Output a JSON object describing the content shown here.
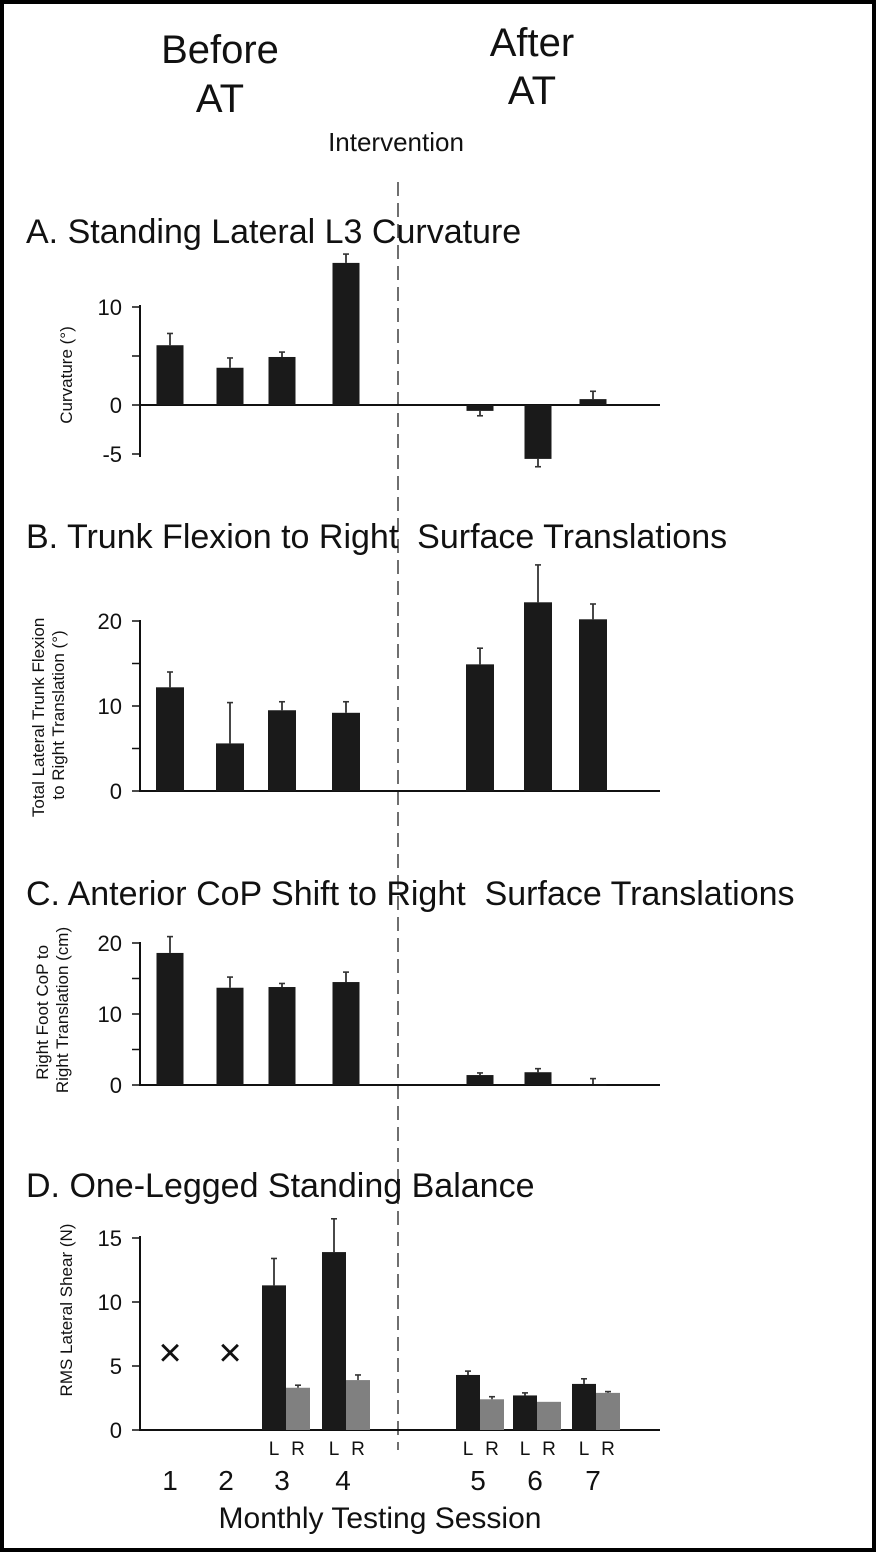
{
  "header": {
    "before_line1": "Before",
    "before_line2": "AT",
    "after_line1": "After",
    "after_line2": "AT",
    "intervention": "Intervention"
  },
  "xaxis": {
    "label": "Monthly Testing Session",
    "sessions": [
      "1",
      "2",
      "3",
      "4",
      "5",
      "6",
      "7"
    ],
    "lr_labels": [
      "L",
      "R"
    ]
  },
  "colors": {
    "bar": "#1a1a1a",
    "bar_right": "#808080",
    "axis": "#111111"
  },
  "chart_data": [
    {
      "type": "bar",
      "title": "A. Standing Lateral L3 Curvature",
      "ylabel": "Curvature (°)",
      "ylim": [
        -5,
        15
      ],
      "yticks": [
        {
          "value": 10,
          "label": "10"
        },
        {
          "value": 0,
          "label": "0"
        },
        {
          "value": -5,
          "label": "-5"
        }
      ],
      "sessions": [
        1,
        2,
        3,
        4,
        5,
        6,
        7
      ],
      "values": [
        6.1,
        3.8,
        4.9,
        14.5,
        -0.6,
        -5.5,
        0.6
      ],
      "errors": [
        1.2,
        1.0,
        0.5,
        0.9,
        0.5,
        0.8,
        0.8
      ]
    },
    {
      "type": "bar",
      "title": "B. Trunk Flexion to Right  Surface Translations",
      "ylabel": "Total Lateral Trunk Flexion\nto Right Translation (°)",
      "ylim": [
        0,
        25
      ],
      "yticks": [
        {
          "value": 20,
          "label": "20"
        },
        {
          "value": 10,
          "label": "10"
        },
        {
          "value": 0,
          "label": "0"
        }
      ],
      "sessions": [
        1,
        2,
        3,
        4,
        5,
        6,
        7
      ],
      "values": [
        12.2,
        5.6,
        9.5,
        9.2,
        14.9,
        22.2,
        20.2
      ],
      "errors": [
        1.8,
        4.8,
        1.0,
        1.3,
        1.9,
        4.4,
        1.8
      ]
    },
    {
      "type": "bar",
      "title": "C. Anterior CoP Shift to Right  Surface Translations",
      "ylabel": "Right  Foot CoP to\nRight Translation (cm)",
      "ylim": [
        0,
        20
      ],
      "yticks": [
        {
          "value": 20,
          "label": "20"
        },
        {
          "value": 10,
          "label": "10"
        },
        {
          "value": 0,
          "label": "0"
        }
      ],
      "sessions": [
        1,
        2,
        3,
        4,
        5,
        6,
        7
      ],
      "values": [
        18.6,
        13.7,
        13.8,
        14.5,
        1.4,
        1.8,
        0.1
      ],
      "errors": [
        2.3,
        1.5,
        0.5,
        1.4,
        0.3,
        0.5,
        0.8
      ]
    },
    {
      "type": "bar",
      "title": "D. One-Legged Standing Balance",
      "ylabel": "RMS Lateral Shear (N)",
      "ylim": [
        0,
        15
      ],
      "yticks": [
        {
          "value": 15,
          "label": "15"
        },
        {
          "value": 10,
          "label": "10"
        },
        {
          "value": 5,
          "label": "5"
        },
        {
          "value": 0,
          "label": "0"
        }
      ],
      "missing_sessions": [
        1,
        2
      ],
      "missing_marker": "×",
      "sessions": [
        3,
        4,
        5,
        6,
        7
      ],
      "series": [
        {
          "values": [
            11.3,
            13.9,
            4.3,
            2.7,
            3.6
          ],
          "errors": [
            2.1,
            2.6,
            0.3,
            0.2,
            0.4
          ]
        },
        {
          "values": [
            3.3,
            3.9,
            2.4,
            2.2,
            2.9
          ],
          "errors": [
            0.2,
            0.4,
            0.2,
            0.0,
            0.1
          ]
        }
      ]
    }
  ]
}
